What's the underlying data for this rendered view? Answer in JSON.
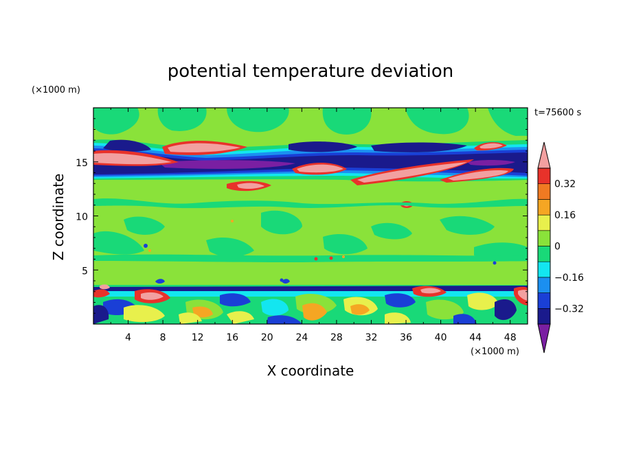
{
  "chart_data": {
    "type": "heatmap",
    "title": "potential temperature deviation",
    "xlabel": "X coordinate",
    "ylabel": "Z coordinate",
    "x_unit": "(×1000 m)",
    "y_unit": "(×1000 m)",
    "time_label": "t=75600 s",
    "xlim": [
      0,
      50
    ],
    "ylim": [
      0,
      20
    ],
    "x_ticks": [
      "4",
      "8",
      "12",
      "16",
      "20",
      "24",
      "28",
      "32",
      "36",
      "40",
      "44",
      "48"
    ],
    "y_ticks": [
      "5",
      "10",
      "15"
    ],
    "colorbar": {
      "levels": [
        -0.48,
        -0.4,
        -0.32,
        -0.24,
        -0.16,
        -0.08,
        0,
        0.08,
        0.16,
        0.24,
        0.32,
        0.4,
        0.48
      ],
      "labels": [
        "0.32",
        "0.16",
        "0",
        "-0.16",
        "-0.32"
      ],
      "label_values": [
        0.32,
        0.16,
        0,
        -0.16,
        -0.32
      ],
      "colors": [
        "#7a1fa2",
        "#1a1a8c",
        "#1a3fd6",
        "#1b8ff0",
        "#13e6f0",
        "#19d978",
        "#8ae23a",
        "#e8f04c",
        "#f5a623",
        "#f07a22",
        "#e8322a",
        "#f2a0a0"
      ]
    },
    "features": [
      {
        "name": "upper-warm-layer-left",
        "x": [
          0,
          10
        ],
        "z": [
          14.6,
          16.0
        ],
        "value": 0.48
      },
      {
        "name": "upper-cold-layer",
        "x": [
          0,
          50
        ],
        "z": [
          13.6,
          15.0
        ],
        "value": -0.48
      },
      {
        "name": "upper-warm-layer-right",
        "x": [
          30,
          48
        ],
        "z": [
          13.0,
          15.2
        ],
        "value": 0.48
      },
      {
        "name": "near-surface-mixed-layer",
        "x": [
          0,
          50
        ],
        "z": [
          0,
          3.8
        ],
        "value": 0.3
      }
    ]
  }
}
